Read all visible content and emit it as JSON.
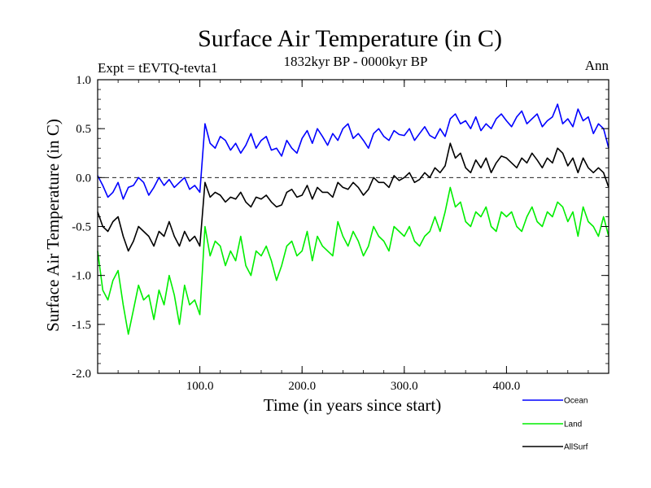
{
  "chart_data": {
    "type": "line",
    "title": "Surface Air Temperature (in C)",
    "subtitle_left": "Expt = tEVTQ-tevta1",
    "subtitle_center": "1832kyr BP - 0000kyr BP",
    "subtitle_right": "Ann",
    "xlabel": "Time (in years since start)",
    "ylabel": "Surface Air Temperature (in C)",
    "xlim": [
      0,
      500
    ],
    "ylim": [
      -2.0,
      1.0
    ],
    "x_ticks": [
      100,
      200,
      300,
      400
    ],
    "x_tick_labels": [
      "100.0",
      "200.0",
      "300.0",
      "400.0"
    ],
    "y_ticks": [
      -2.0,
      -1.5,
      -1.0,
      -0.5,
      0.0,
      0.5,
      1.0
    ],
    "y_tick_labels": [
      "-2.0",
      "-1.5",
      "-1.0",
      "-0.5",
      "0.0",
      "0.5",
      "1.0"
    ],
    "zero_line": "dashed",
    "legend_position": "below-right",
    "note": "Annual-mean series of 500 years; values below are sampled every 5 years, read from the plot.",
    "x": [
      0,
      5,
      10,
      15,
      20,
      25,
      30,
      35,
      40,
      45,
      50,
      55,
      60,
      65,
      70,
      75,
      80,
      85,
      90,
      95,
      100,
      105,
      110,
      115,
      120,
      125,
      130,
      135,
      140,
      145,
      150,
      155,
      160,
      165,
      170,
      175,
      180,
      185,
      190,
      195,
      200,
      205,
      210,
      215,
      220,
      225,
      230,
      235,
      240,
      245,
      250,
      255,
      260,
      265,
      270,
      275,
      280,
      285,
      290,
      295,
      300,
      305,
      310,
      315,
      320,
      325,
      330,
      335,
      340,
      345,
      350,
      355,
      360,
      365,
      370,
      375,
      380,
      385,
      390,
      395,
      400,
      405,
      410,
      415,
      420,
      425,
      430,
      435,
      440,
      445,
      450,
      455,
      460,
      465,
      470,
      475,
      480,
      485,
      490,
      495,
      500
    ],
    "series": [
      {
        "name": "Ocean",
        "color": "#0000ff",
        "values": [
          0.02,
          -0.08,
          -0.2,
          -0.15,
          -0.05,
          -0.22,
          -0.1,
          -0.08,
          0.0,
          -0.05,
          -0.18,
          -0.1,
          0.0,
          -0.08,
          -0.02,
          -0.1,
          -0.05,
          0.0,
          -0.12,
          -0.08,
          -0.15,
          0.55,
          0.35,
          0.3,
          0.42,
          0.38,
          0.28,
          0.35,
          0.25,
          0.33,
          0.45,
          0.3,
          0.38,
          0.42,
          0.28,
          0.3,
          0.22,
          0.38,
          0.3,
          0.25,
          0.4,
          0.48,
          0.35,
          0.5,
          0.42,
          0.33,
          0.45,
          0.38,
          0.5,
          0.55,
          0.4,
          0.45,
          0.38,
          0.3,
          0.45,
          0.5,
          0.42,
          0.38,
          0.48,
          0.44,
          0.43,
          0.5,
          0.38,
          0.45,
          0.52,
          0.43,
          0.4,
          0.5,
          0.42,
          0.6,
          0.65,
          0.55,
          0.58,
          0.5,
          0.62,
          0.48,
          0.55,
          0.5,
          0.6,
          0.65,
          0.58,
          0.52,
          0.62,
          0.68,
          0.55,
          0.6,
          0.65,
          0.52,
          0.58,
          0.62,
          0.75,
          0.55,
          0.6,
          0.52,
          0.7,
          0.58,
          0.62,
          0.45,
          0.55,
          0.5,
          0.3
        ]
      },
      {
        "name": "Land",
        "color": "#00ee00",
        "values": [
          -0.75,
          -1.15,
          -1.25,
          -1.05,
          -0.95,
          -1.3,
          -1.6,
          -1.35,
          -1.1,
          -1.25,
          -1.2,
          -1.45,
          -1.15,
          -1.3,
          -1.0,
          -1.2,
          -1.5,
          -1.1,
          -1.3,
          -1.25,
          -1.4,
          -0.5,
          -0.8,
          -0.65,
          -0.7,
          -0.9,
          -0.75,
          -0.85,
          -0.6,
          -0.9,
          -1.0,
          -0.75,
          -0.8,
          -0.7,
          -0.85,
          -1.05,
          -0.9,
          -0.7,
          -0.65,
          -0.8,
          -0.75,
          -0.55,
          -0.85,
          -0.6,
          -0.7,
          -0.75,
          -0.8,
          -0.45,
          -0.6,
          -0.7,
          -0.55,
          -0.65,
          -0.8,
          -0.7,
          -0.5,
          -0.6,
          -0.65,
          -0.75,
          -0.5,
          -0.55,
          -0.6,
          -0.5,
          -0.65,
          -0.7,
          -0.6,
          -0.55,
          -0.4,
          -0.55,
          -0.35,
          -0.1,
          -0.3,
          -0.25,
          -0.45,
          -0.5,
          -0.35,
          -0.4,
          -0.3,
          -0.5,
          -0.55,
          -0.35,
          -0.4,
          -0.35,
          -0.5,
          -0.55,
          -0.4,
          -0.3,
          -0.45,
          -0.5,
          -0.35,
          -0.4,
          -0.25,
          -0.3,
          -0.45,
          -0.35,
          -0.6,
          -0.3,
          -0.45,
          -0.5,
          -0.6,
          -0.4,
          -0.6
        ]
      },
      {
        "name": "AllSurf",
        "color": "#000000",
        "values": [
          -0.35,
          -0.5,
          -0.55,
          -0.45,
          -0.4,
          -0.6,
          -0.75,
          -0.65,
          -0.5,
          -0.55,
          -0.6,
          -0.7,
          -0.55,
          -0.6,
          -0.45,
          -0.6,
          -0.7,
          -0.55,
          -0.65,
          -0.6,
          -0.7,
          -0.05,
          -0.2,
          -0.15,
          -0.18,
          -0.25,
          -0.2,
          -0.22,
          -0.15,
          -0.25,
          -0.3,
          -0.2,
          -0.22,
          -0.18,
          -0.25,
          -0.3,
          -0.28,
          -0.15,
          -0.12,
          -0.2,
          -0.18,
          -0.08,
          -0.22,
          -0.1,
          -0.15,
          -0.15,
          -0.2,
          -0.05,
          -0.1,
          -0.12,
          -0.05,
          -0.1,
          -0.18,
          -0.12,
          0.0,
          -0.05,
          -0.05,
          -0.1,
          0.02,
          -0.03,
          0.0,
          0.05,
          -0.05,
          -0.02,
          0.05,
          0.0,
          0.1,
          0.05,
          0.12,
          0.35,
          0.2,
          0.25,
          0.1,
          0.05,
          0.18,
          0.1,
          0.2,
          0.05,
          0.15,
          0.22,
          0.2,
          0.15,
          0.1,
          0.2,
          0.15,
          0.25,
          0.18,
          0.1,
          0.2,
          0.15,
          0.3,
          0.25,
          0.12,
          0.2,
          0.05,
          0.2,
          0.1,
          0.05,
          0.1,
          0.05,
          -0.1
        ]
      }
    ]
  }
}
